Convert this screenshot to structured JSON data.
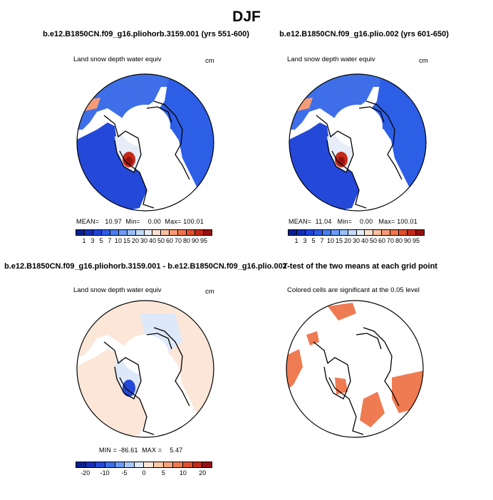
{
  "figure": {
    "title": "DJF"
  },
  "panels": [
    {
      "id": "p1",
      "title": "b.e12.B1850CN.f09_g16.pliohorb.3159.001 (yrs 551-600)",
      "variable": "Land snow depth water equiv",
      "units": "cm",
      "stats": {
        "mean_label": "MEAN=",
        "mean": "10.97",
        "min_label": "Min=",
        "min": "0.00",
        "max_label": "Max=",
        "max": "100.01"
      },
      "colorbar": "snow"
    },
    {
      "id": "p2",
      "title": "b.e12.B1850CN.f09_g16.plio.002 (yrs 601-650)",
      "variable": "Land snow depth water equiv",
      "units": "cm",
      "stats": {
        "mean_label": "MEAN=",
        "mean": "11.04",
        "min_label": "Min=",
        "min": "0.00",
        "max_label": "Max=",
        "max": "100.01"
      },
      "colorbar": "snow"
    },
    {
      "id": "p3",
      "title": "b.e12.B1850CN.f09_g16.pliohorb.3159.001 - b.e12.B1850CN.f09_g16.plio.002",
      "variable": "Land snow depth water equiv",
      "units": "cm",
      "stats": {
        "min_label": "MIN =",
        "min": "-86.61",
        "max_label": "MAX =",
        "max": "5.47"
      },
      "colorbar": "diff"
    },
    {
      "id": "p4",
      "title": "T-test of the two means at each grid point",
      "variable": "Colored cells are significant at the 0.05 level"
    }
  ],
  "colorbars": {
    "snow": {
      "ticks": [
        "1",
        "3",
        "5",
        "7",
        "10",
        "15",
        "20",
        "30",
        "40",
        "50",
        "60",
        "70",
        "80",
        "90",
        "95"
      ],
      "colors": [
        "#08208f",
        "#1530b8",
        "#1f44d8",
        "#2d5ee6",
        "#4a7ff0",
        "#6d9cf5",
        "#98bff8",
        "#c3daf9",
        "#e6edf8",
        "#fbe0cf",
        "#f9c0a0",
        "#f59c76",
        "#ee754e",
        "#e04f2e",
        "#c32a1a",
        "#96110f"
      ]
    },
    "diff": {
      "ticks": [
        "-20",
        "-10",
        "-5",
        "0",
        "5",
        "10",
        "20"
      ],
      "tick_positions": [
        1,
        3,
        5,
        7,
        9,
        11,
        13
      ],
      "colors": [
        "#08208f",
        "#1530b8",
        "#2448d8",
        "#3f6fe8",
        "#6d9cf5",
        "#a8c8f8",
        "#dde8f8",
        "#fbe6d8",
        "#f9caa8",
        "#f5a47e",
        "#ef7b52",
        "#e0502e",
        "#c42a1a",
        "#96110f"
      ]
    }
  },
  "chart_data": [
    {
      "type": "heatmap",
      "panel": "p1",
      "title": "b.e12.B1850CN.f09_g16.pliohorb.3159.001 (yrs 551-600)",
      "variable": "Land snow depth water equiv",
      "units": "cm",
      "mean": 10.97,
      "min": 0.0,
      "max": 100.01,
      "levels": [
        1,
        3,
        5,
        7,
        10,
        15,
        20,
        30,
        40,
        50,
        60,
        70,
        80,
        90,
        95
      ],
      "projection": "north polar stereographic"
    },
    {
      "type": "heatmap",
      "panel": "p2",
      "title": "b.e12.B1850CN.f09_g16.plio.002 (yrs 601-650)",
      "variable": "Land snow depth water equiv",
      "units": "cm",
      "mean": 11.04,
      "min": 0.0,
      "max": 100.01,
      "levels": [
        1,
        3,
        5,
        7,
        10,
        15,
        20,
        30,
        40,
        50,
        60,
        70,
        80,
        90,
        95
      ],
      "projection": "north polar stereographic"
    },
    {
      "type": "heatmap",
      "panel": "p3",
      "title": "b.e12.B1850CN.f09_g16.pliohorb.3159.001 - b.e12.B1850CN.f09_g16.plio.002",
      "variable": "Land snow depth water equiv",
      "units": "cm",
      "min": -86.61,
      "max": 5.47,
      "levels": [
        -20,
        -10,
        -5,
        0,
        5,
        10,
        20
      ],
      "projection": "north polar stereographic"
    },
    {
      "type": "heatmap",
      "panel": "p4",
      "title": "T-test of the two means at each grid point",
      "note": "Colored cells are significant at the 0.05 level",
      "projection": "north polar stereographic"
    }
  ]
}
